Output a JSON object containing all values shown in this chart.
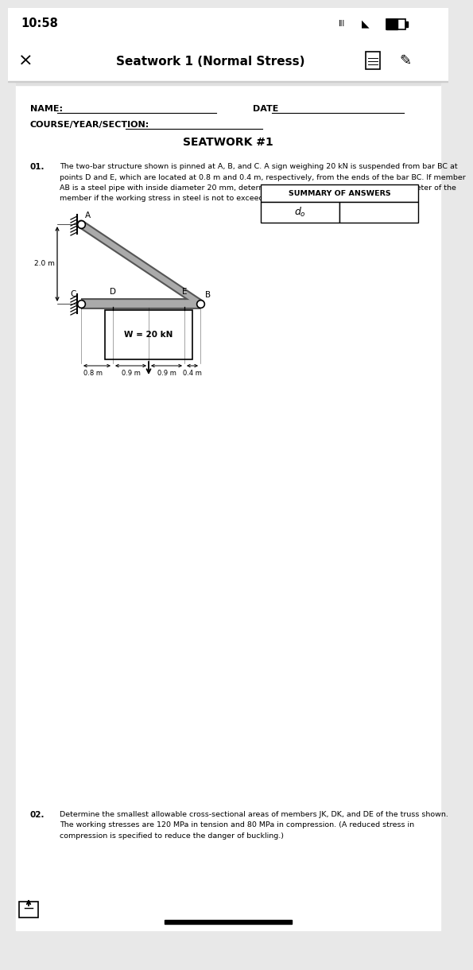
{
  "bg_color": "#e8e8e8",
  "page_bg": "#ffffff",
  "status_bar_time": "10:58",
  "title_bar_text": "Seatwork 1 (Normal Stress)",
  "name_label": "NAME:",
  "date_label": "DATE",
  "course_label": "COURSE/YEAR/SECTION:",
  "seatwork_title": "SEATWORK #1",
  "q01_number": "01.",
  "q01_line1": "The two-bar structure shown is pinned at A, B, and C. A sign weighing 20 kN is suspended from bar BC at",
  "q01_line2": "points D and E, which are located at 0.8 m and 0.4 m, respectively, from the ends of the bar BC. If member",
  "q01_line3": "AB is a steel pipe with inside diameter 20 mm, determine the smallest permissible outer diameter of the",
  "q01_line4": "member if the working stress in steel is not to exceed 140 MPa.",
  "summary_title": "SUMMARY OF ANSWERS",
  "dim_2m": "2.0 m",
  "dim_c": "C",
  "dim_d": "D",
  "dim_e": "E",
  "dim_b": "B",
  "dim_a": "A",
  "dim_09m_left": "0.9 m",
  "dim_09m_right": "0.9 m",
  "dim_08m": "0.8 m",
  "dim_04m": "0.4 m",
  "weight_label": "W = 20 kN",
  "q02_number": "02.",
  "q02_line1": "Determine the smallest allowable cross-sectional areas of members JK, DK, and DE of the truss shown.",
  "q02_line2": "The working stresses are 120 MPa in tension and 80 MPa in compression. (A reduced stress in",
  "q02_line3": "compression is specified to reduce the danger of buckling.)"
}
